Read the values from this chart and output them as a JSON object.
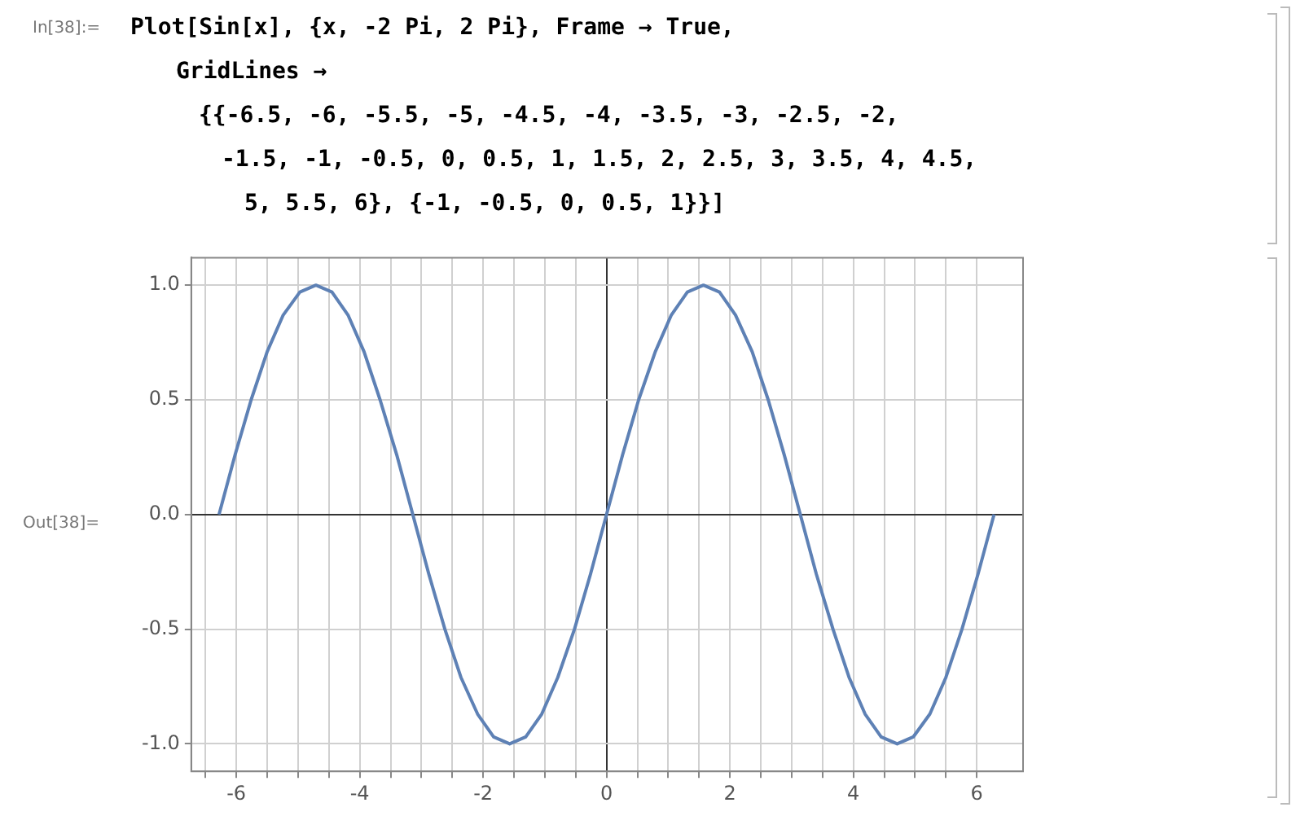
{
  "chart_data": {
    "type": "line",
    "annotations": [
      "In[38]:=",
      "Plot[Sin[x], {x, -2 Pi, 2 Pi}, Frame → True,",
      "GridLines →",
      "{{-6.5, -6, -5.5, -5, -4.5, -4, -3.5, -3, -2.5, -2,",
      "-1.5, -1, -0.5, 0, 0.5, 1, 1.5, 2, 2.5, 3, 3.5, 4, 4.5,",
      "5, 5.5, 6}, {-1, -0.5, 0, 0.5, 1}}]",
      "Out[38]="
    ],
    "x": [
      -6.28,
      -6.02,
      -5.76,
      -5.5,
      -5.24,
      -4.97,
      -4.71,
      -4.45,
      -4.19,
      -3.93,
      -3.67,
      -3.4,
      -3.14,
      -2.88,
      -2.62,
      -2.36,
      -2.09,
      -1.83,
      -1.57,
      -1.31,
      -1.05,
      -0.79,
      -0.52,
      -0.26,
      0,
      0.26,
      0.52,
      0.79,
      1.05,
      1.31,
      1.57,
      1.83,
      2.09,
      2.36,
      2.62,
      2.88,
      3.14,
      3.4,
      3.67,
      3.93,
      4.19,
      4.45,
      4.71,
      4.97,
      5.24,
      5.5,
      5.76,
      6.02,
      6.28
    ],
    "series": [
      {
        "color": "#5e81b5",
        "values": [
          0,
          0.26,
          0.5,
          0.71,
          0.87,
          0.97,
          1,
          0.97,
          0.87,
          0.71,
          0.5,
          0.26,
          0,
          -0.26,
          -0.5,
          -0.71,
          -0.87,
          -0.97,
          -1,
          -0.97,
          -0.87,
          -0.71,
          -0.5,
          -0.26,
          0,
          0.26,
          0.5,
          0.71,
          0.87,
          0.97,
          1,
          0.97,
          0.87,
          0.71,
          0.5,
          0.26,
          0,
          -0.26,
          -0.5,
          -0.71,
          -0.87,
          -0.97,
          -1,
          -0.97,
          -0.87,
          -0.71,
          -0.5,
          -0.26,
          0
        ]
      }
    ],
    "xlim": [
      -6.73,
      6.75
    ],
    "ylim": [
      -1.12,
      1.12
    ],
    "xticks": [
      {
        "value": -6.5,
        "label": null
      },
      -6,
      {
        "value": -5.5,
        "label": null
      },
      {
        "value": -5,
        "label": null
      },
      {
        "value": -4.5,
        "label": null
      },
      -4,
      {
        "value": -3.5,
        "label": null
      },
      {
        "value": -3,
        "label": null
      },
      {
        "value": -2.5,
        "label": null
      },
      -2,
      {
        "value": -1.5,
        "label": null
      },
      {
        "value": -1,
        "label": null
      },
      {
        "value": -0.5,
        "label": null
      },
      0,
      {
        "value": 0.5,
        "label": null
      },
      {
        "value": 1,
        "label": null
      },
      {
        "value": 1.5,
        "label": null
      },
      2,
      {
        "value": 2.5,
        "label": null
      },
      {
        "value": 3,
        "label": null
      },
      {
        "value": 3.5,
        "label": null
      },
      4,
      {
        "value": 4.5,
        "label": null
      },
      {
        "value": 5,
        "label": null
      },
      {
        "value": 5.5,
        "label": null
      },
      6
    ],
    "yticks": [
      {
        "value": -1,
        "label": "-1.0"
      },
      {
        "value": -0.5,
        "label": "-0.5"
      },
      {
        "value": 0,
        "label": "0.0"
      },
      {
        "value": 0.5,
        "label": "0.5"
      },
      {
        "value": 1,
        "label": "1.0"
      }
    ],
    "grid": true,
    "legend": false,
    "marker": "none",
    "line_style": "solid"
  }
}
